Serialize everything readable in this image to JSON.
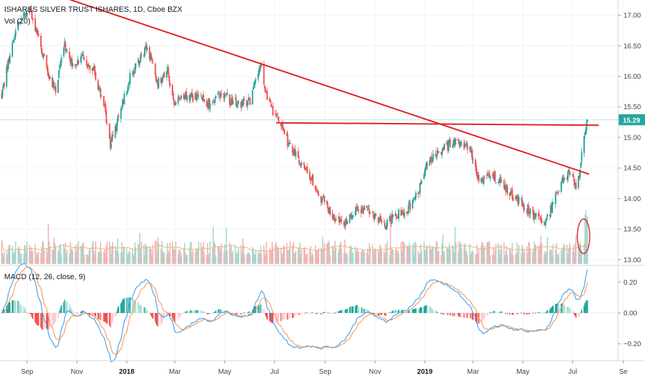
{
  "legend": {
    "symbol": "ISHARES SILVER TRUST ISHARES, 1D, Cboe BZX",
    "volume": "Vol (20)",
    "macd": "MACD (12, 26, close, 9)"
  },
  "chart_data": {
    "type": "candlestick",
    "price_axis": {
      "ticks": [
        "17.00",
        "16.50",
        "16.00",
        "15.50",
        "15.00",
        "14.50",
        "14.00",
        "13.50",
        "13.00"
      ],
      "ylim": [
        12.93,
        17.25
      ],
      "last_price": "15.29"
    },
    "macd_axis": {
      "ticks": [
        "0.20",
        "0.00",
        "−0.20"
      ],
      "ylim": [
        -0.3,
        0.3
      ]
    },
    "x_axis": {
      "labels": [
        "Sep",
        "Nov",
        "2018",
        "Mar",
        "May",
        "Jul",
        "Sep",
        "Nov",
        "2019",
        "Mar",
        "May",
        "Jul",
        "Se"
      ],
      "bold": [
        "2018",
        "2019"
      ]
    },
    "price_path": [
      [
        "2017-08-01",
        15.7
      ],
      [
        "2017-08-18",
        16.8
      ],
      [
        "2017-09-05",
        17.1
      ],
      [
        "2017-09-15",
        16.6
      ],
      [
        "2017-09-28",
        16.0
      ],
      [
        "2017-10-06",
        15.8
      ],
      [
        "2017-10-17",
        16.5
      ],
      [
        "2017-10-27",
        16.2
      ],
      [
        "2017-11-10",
        16.3
      ],
      [
        "2017-11-22",
        16.1
      ],
      [
        "2017-12-05",
        15.45
      ],
      [
        "2017-12-12",
        14.9
      ],
      [
        "2017-12-22",
        15.3
      ],
      [
        "2018-01-05",
        16.0
      ],
      [
        "2018-01-18",
        16.3
      ],
      [
        "2018-01-26",
        16.5
      ],
      [
        "2018-02-08",
        15.9
      ],
      [
        "2018-02-20",
        16.1
      ],
      [
        "2018-02-28",
        15.5
      ],
      [
        "2018-03-12",
        15.7
      ],
      [
        "2018-03-26",
        15.65
      ],
      [
        "2018-04-12",
        15.55
      ],
      [
        "2018-04-24",
        15.7
      ],
      [
        "2018-05-08",
        15.6
      ],
      [
        "2018-05-18",
        15.55
      ],
      [
        "2018-06-01",
        15.6
      ],
      [
        "2018-06-14",
        16.2
      ],
      [
        "2018-06-22",
        15.6
      ],
      [
        "2018-07-05",
        15.3
      ],
      [
        "2018-07-18",
        14.9
      ],
      [
        "2018-08-01",
        14.6
      ],
      [
        "2018-08-16",
        14.3
      ],
      [
        "2018-08-22",
        14.05
      ],
      [
        "2018-08-29",
        14.0
      ],
      [
        "2018-09-10",
        13.7
      ],
      [
        "2018-09-24",
        13.55
      ],
      [
        "2018-10-10",
        13.85
      ],
      [
        "2018-10-24",
        13.8
      ],
      [
        "2018-11-13",
        13.55
      ],
      [
        "2018-11-27",
        13.75
      ],
      [
        "2018-12-10",
        13.8
      ],
      [
        "2018-12-24",
        14.1
      ],
      [
        "2019-01-03",
        14.6
      ],
      [
        "2019-01-17",
        14.75
      ],
      [
        "2019-02-01",
        14.9
      ],
      [
        "2019-02-15",
        14.95
      ],
      [
        "2019-02-27",
        14.75
      ],
      [
        "2019-03-08",
        14.3
      ],
      [
        "2019-03-22",
        14.4
      ],
      [
        "2019-04-05",
        14.25
      ],
      [
        "2019-04-18",
        14.05
      ],
      [
        "2019-05-02",
        13.9
      ],
      [
        "2019-05-15",
        13.7
      ],
      [
        "2019-05-28",
        13.6
      ],
      [
        "2019-06-07",
        13.9
      ],
      [
        "2019-06-14",
        14.2
      ],
      [
        "2019-06-26",
        14.4
      ],
      [
        "2019-07-05",
        14.2
      ],
      [
        "2019-07-10",
        14.45
      ],
      [
        "2019-07-12",
        14.7
      ],
      [
        "2019-07-16",
        15.05
      ],
      [
        "2019-07-19",
        15.29
      ]
    ],
    "trend_lines": [
      {
        "name": "descending-trendline",
        "color": "#e02020",
        "from": [
          "2017-08-08",
          17.6
        ],
        "to": [
          "2019-07-21",
          14.4
        ]
      },
      {
        "name": "horizontal-resistance",
        "color": "#e02020",
        "from": [
          "2018-07-03",
          15.24
        ],
        "to": [
          "2019-08-02",
          15.2
        ]
      }
    ],
    "annotations": [
      {
        "name": "volume-spike-circle",
        "color": "#d32f2f",
        "center_date": "2019-07-16"
      }
    ],
    "colors": {
      "up": "#26a69a",
      "down": "#ef5350",
      "volume_up": "#a7d7cf",
      "volume_down": "#f1b5b3",
      "volume_ma": "#f0b27a",
      "macd_line": "#2196f3",
      "signal_line": "#ff8a3c",
      "annotation": "#e02020",
      "last_price_badge": "#26a69a"
    }
  }
}
